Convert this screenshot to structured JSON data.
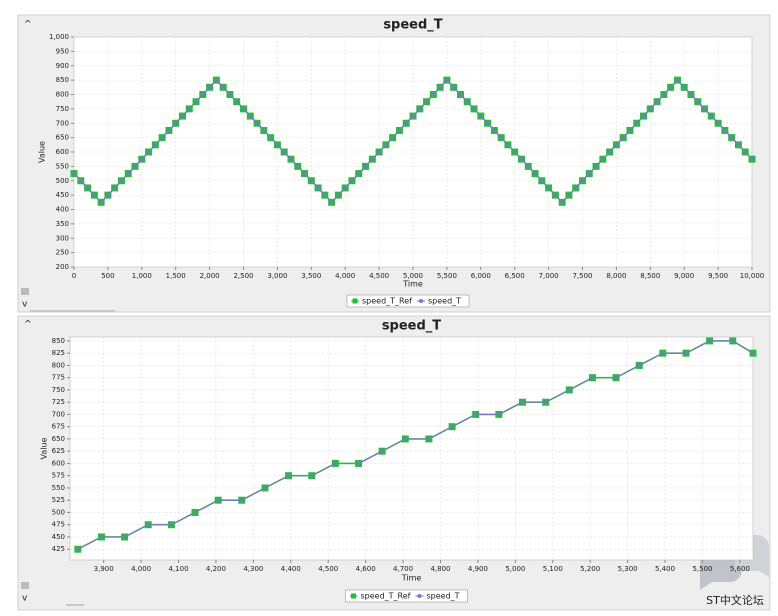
{
  "chart_data": [
    {
      "type": "line",
      "title": "speed_T",
      "xlabel": "Time",
      "ylabel": "Value",
      "x": [
        0,
        100,
        200,
        300,
        400,
        500,
        600,
        700,
        800,
        900,
        1000,
        1100,
        1200,
        1300,
        1400,
        1500,
        1600,
        1700,
        1800,
        1900,
        2000,
        2100,
        2200,
        2300,
        2400,
        2500,
        2600,
        2700,
        2800,
        2900,
        3000,
        3100,
        3200,
        3300,
        3400,
        3500,
        3600,
        3700,
        3800,
        3900,
        4000,
        4100,
        4200,
        4300,
        4400,
        4500,
        4600,
        4700,
        4800,
        4900,
        5000,
        5100,
        5200,
        5300,
        5400,
        5500,
        5600,
        5700,
        5800,
        5900,
        6000,
        6100,
        6200,
        6300,
        6400,
        6500,
        6600,
        6700,
        6800,
        6900,
        7000,
        7100,
        7200,
        7300,
        7400,
        7500,
        7600,
        7700,
        7800,
        7900,
        8000,
        8100,
        8200,
        8300,
        8400,
        8500,
        8600,
        8700,
        8800,
        8900,
        9000,
        9100,
        9200,
        9300,
        9400,
        9500,
        9600,
        9700,
        9800,
        9900,
        10000
      ],
      "series": [
        {
          "name": "speed_T_Ref",
          "color": "#22c03a",
          "values": [
            525,
            500,
            475,
            450,
            425,
            450,
            475,
            500,
            525,
            550,
            575,
            600,
            625,
            650,
            675,
            700,
            725,
            750,
            775,
            800,
            825,
            850,
            825,
            800,
            775,
            750,
            725,
            700,
            675,
            650,
            625,
            600,
            575,
            550,
            525,
            500,
            475,
            450,
            425,
            450,
            475,
            500,
            525,
            550,
            575,
            600,
            625,
            650,
            675,
            700,
            725,
            750,
            775,
            800,
            825,
            850,
            825,
            800,
            775,
            750,
            725,
            700,
            675,
            650,
            625,
            600,
            575,
            550,
            525,
            500,
            475,
            450,
            425,
            450,
            475,
            500,
            525,
            550,
            575,
            600,
            625,
            650,
            675,
            700,
            725,
            750,
            775,
            800,
            825,
            850,
            825,
            800,
            775,
            750,
            725,
            700,
            675,
            650,
            625,
            600,
            575
          ]
        },
        {
          "name": "speed_T",
          "color": "#8c6ad8",
          "values": [
            525,
            500,
            475,
            450,
            425,
            450,
            475,
            500,
            525,
            550,
            575,
            600,
            625,
            650,
            675,
            700,
            725,
            750,
            775,
            800,
            825,
            850,
            825,
            800,
            775,
            750,
            725,
            700,
            675,
            650,
            625,
            600,
            575,
            550,
            525,
            500,
            475,
            450,
            425,
            450,
            475,
            500,
            525,
            550,
            575,
            600,
            625,
            650,
            675,
            700,
            725,
            750,
            775,
            800,
            825,
            850,
            825,
            800,
            775,
            750,
            725,
            700,
            675,
            650,
            625,
            600,
            575,
            550,
            525,
            500,
            475,
            450,
            425,
            450,
            475,
            500,
            525,
            550,
            575,
            600,
            625,
            650,
            675,
            700,
            725,
            750,
            775,
            800,
            825,
            850,
            825,
            800,
            775,
            750,
            725,
            700,
            675,
            650,
            625,
            600,
            575
          ]
        }
      ],
      "xlim": [
        0,
        10000
      ],
      "ylim": [
        200,
        1000
      ],
      "xticks": [
        0,
        500,
        {
          "value": 1000,
          "label": "1,000"
        },
        {
          "value": 1500,
          "label": "1,500"
        },
        {
          "value": 2000,
          "label": "2,000"
        },
        {
          "value": 2500,
          "label": "2,500"
        },
        {
          "value": 3000,
          "label": "3,000"
        },
        {
          "value": 3500,
          "label": "3,500"
        },
        {
          "value": 4000,
          "label": "4,000"
        },
        {
          "value": 4500,
          "label": "4,500"
        },
        {
          "value": 5000,
          "label": "5,000"
        },
        {
          "value": 5500,
          "label": "5,500"
        },
        {
          "value": 6000,
          "label": "6,000"
        },
        {
          "value": 6500,
          "label": "6,500"
        },
        {
          "value": 7000,
          "label": "7,000"
        },
        {
          "value": 7500,
          "label": "7,500"
        },
        {
          "value": 8000,
          "label": "8,000"
        },
        {
          "value": 8500,
          "label": "8,500"
        },
        {
          "value": 9000,
          "label": "9,000"
        },
        {
          "value": 9500,
          "label": "9,500"
        },
        {
          "value": 10000,
          "label": "10,000"
        }
      ],
      "yticks": [
        200,
        250,
        300,
        350,
        400,
        450,
        500,
        550,
        600,
        650,
        700,
        750,
        800,
        850,
        900,
        950,
        {
          "value": 1000,
          "label": "1,000"
        }
      ],
      "grid": true
    },
    {
      "type": "line",
      "title": "speed_T",
      "xlabel": "Time",
      "ylabel": "Value",
      "x": [
        3831,
        3894,
        3956,
        4019,
        4081,
        4144,
        4206,
        4269,
        4331,
        4394,
        4456,
        4519,
        4581,
        4644,
        4706,
        4769,
        4831,
        4894,
        4956,
        5019,
        5081,
        5144,
        5206,
        5269,
        5331,
        5394,
        5456,
        5519,
        5581,
        5635
      ],
      "series": [
        {
          "name": "speed_T_Ref",
          "color": "#22c03a",
          "values": [
            425,
            450,
            450,
            475,
            475,
            500,
            525,
            525,
            550,
            575,
            575,
            600,
            600,
            625,
            650,
            650,
            675,
            700,
            700,
            725,
            725,
            750,
            775,
            775,
            800,
            825,
            825,
            850,
            850,
            825
          ]
        },
        {
          "name": "speed_T",
          "color": "#8c6ad8",
          "values": [
            425,
            450,
            450,
            475,
            475,
            500,
            525,
            525,
            550,
            575,
            575,
            600,
            600,
            625,
            650,
            650,
            675,
            700,
            700,
            725,
            725,
            750,
            775,
            775,
            800,
            825,
            825,
            850,
            850,
            825
          ]
        }
      ],
      "xlim": [
        3810,
        5635
      ],
      "ylim": [
        403,
        858
      ],
      "xticks": [
        {
          "value": 3900,
          "label": "3,900"
        },
        {
          "value": 4000,
          "label": "4,000"
        },
        {
          "value": 4100,
          "label": "4,100"
        },
        {
          "value": 4200,
          "label": "4,200"
        },
        {
          "value": 4300,
          "label": "4,300"
        },
        {
          "value": 4400,
          "label": "4,400"
        },
        {
          "value": 4500,
          "label": "4,500"
        },
        {
          "value": 4600,
          "label": "4,600"
        },
        {
          "value": 4700,
          "label": "4,700"
        },
        {
          "value": 4800,
          "label": "4,800"
        },
        {
          "value": 4900,
          "label": "4,900"
        },
        {
          "value": 5000,
          "label": "5,000"
        },
        {
          "value": 5100,
          "label": "5,100"
        },
        {
          "value": 5200,
          "label": "5,200"
        },
        {
          "value": 5300,
          "label": "5,300"
        },
        {
          "value": 5400,
          "label": "5,400"
        },
        {
          "value": 5500,
          "label": "5,500"
        },
        {
          "value": 5600,
          "label": "5,600"
        }
      ],
      "yticks": [
        425,
        450,
        475,
        500,
        525,
        550,
        575,
        600,
        625,
        650,
        675,
        700,
        725,
        750,
        775,
        800,
        825,
        850
      ],
      "grid": true
    }
  ],
  "watermark": "ST中文论坛"
}
